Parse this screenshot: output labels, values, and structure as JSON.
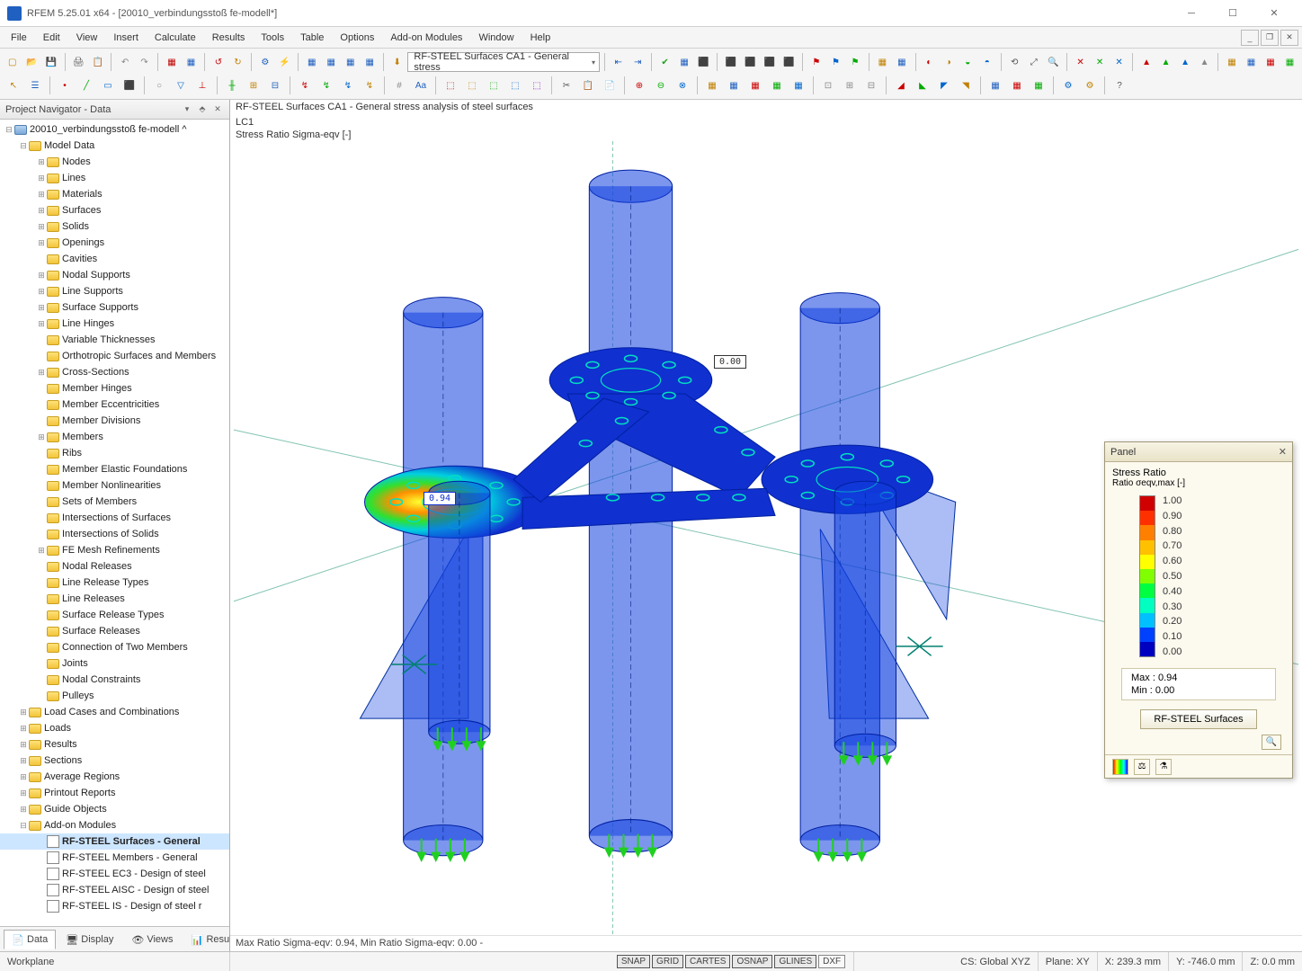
{
  "window": {
    "title": "RFEM 5.25.01 x64 - [20010_verbindungsstoß fe-modell*]"
  },
  "menubar": [
    "File",
    "Edit",
    "View",
    "Insert",
    "Calculate",
    "Results",
    "Tools",
    "Table",
    "Options",
    "Add-on Modules",
    "Window",
    "Help"
  ],
  "toolbar": {
    "dropdown": "RF-STEEL Surfaces CA1 - General stress"
  },
  "navigator": {
    "title": "Project Navigator - Data",
    "root": "20010_verbindungsstoß fe-modell",
    "model_data": "Model Data",
    "items": [
      "Nodes",
      "Lines",
      "Materials",
      "Surfaces",
      "Solids",
      "Openings",
      "Cavities",
      "Nodal Supports",
      "Line Supports",
      "Surface Supports",
      "Line Hinges",
      "Variable Thicknesses",
      "Orthotropic Surfaces and Members",
      "Cross-Sections",
      "Member Hinges",
      "Member Eccentricities",
      "Member Divisions",
      "Members",
      "Ribs",
      "Member Elastic Foundations",
      "Member Nonlinearities",
      "Sets of Members",
      "Intersections of Surfaces",
      "Intersections of Solids",
      "FE Mesh Refinements",
      "Nodal Releases",
      "Line Release Types",
      "Line Releases",
      "Surface Release Types",
      "Surface Releases",
      "Connection of Two Members",
      "Joints",
      "Nodal Constraints",
      "Pulleys"
    ],
    "top_level": [
      "Load Cases and Combinations",
      "Loads",
      "Results",
      "Sections",
      "Average Regions",
      "Printout Reports",
      "Guide Objects"
    ],
    "addon_group": "Add-on Modules",
    "addons": [
      "RF-STEEL Surfaces - General",
      "RF-STEEL Members - General",
      "RF-STEEL EC3 - Design of steel",
      "RF-STEEL AISC - Design of steel",
      "RF-STEEL IS - Design of steel r"
    ],
    "tabs": [
      "Data",
      "Display",
      "Views",
      "Results"
    ]
  },
  "viewport": {
    "header": "RF-STEEL Surfaces CA1 - General stress analysis of steel surfaces",
    "lc": "LC1",
    "sub": "Stress Ratio Sigma-eqv [-]",
    "callout_max": "0.94",
    "callout_min": "0.00",
    "footer": "Max Ratio Sigma-eqv: 0.94, Min Ratio Sigma-eqv: 0.00 -",
    "model_color_base": "#1030d0",
    "model_color_transp": "rgba(16,64,224,0.55)",
    "hotspot_colors": [
      "#d00000",
      "#ff6000",
      "#ffd000",
      "#30d020",
      "#00d0d0",
      "#1030d0"
    ],
    "support_color": "#20d020"
  },
  "panel": {
    "title": "Panel",
    "heading": "Stress Ratio",
    "sub": "Ratio σeqv,max [-]",
    "ticks": [
      "1.00",
      "0.90",
      "0.80",
      "0.70",
      "0.60",
      "0.50",
      "0.40",
      "0.30",
      "0.20",
      "0.10",
      "0.00"
    ],
    "colors": [
      "#d00000",
      "#ff3000",
      "#ff8000",
      "#ffc000",
      "#ffff00",
      "#80ff00",
      "#00ff40",
      "#00ffc0",
      "#00c0ff",
      "#0040ff",
      "#0000c0"
    ],
    "max": "Max  :  0.94",
    "min": "Min   :  0.00",
    "button": "RF-STEEL Surfaces"
  },
  "status": {
    "left": "Workplane",
    "snap": [
      "SNAP",
      "GRID",
      "CARTES",
      "OSNAP",
      "GLINES",
      "DXF"
    ],
    "cs": "CS: Global XYZ",
    "plane": "Plane: XY",
    "x": "X:   239.3 mm",
    "y": "Y:  -746.0 mm",
    "z": "Z:  0.0 mm"
  }
}
